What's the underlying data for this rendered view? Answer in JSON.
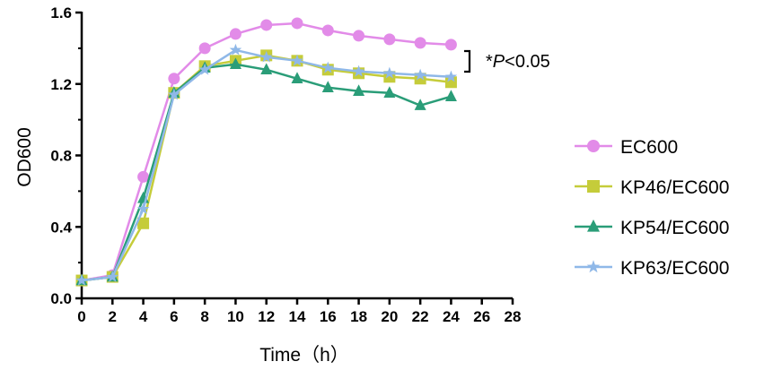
{
  "chart_data": {
    "type": "line",
    "xlabel": "Time（h）",
    "ylabel": "OD600",
    "xlim": [
      0,
      28
    ],
    "ylim": [
      0,
      1.6
    ],
    "xticks": [
      "0",
      "2",
      "4",
      "6",
      "8",
      "10",
      "12",
      "14",
      "16",
      "18",
      "20",
      "22",
      "24",
      "26",
      "28"
    ],
    "yticks": [
      "0.0",
      "0.4",
      "0.8",
      "1.2",
      "1.6"
    ],
    "x": [
      0,
      2,
      4,
      6,
      8,
      10,
      12,
      14,
      16,
      18,
      20,
      22,
      24
    ],
    "series": [
      {
        "name": "EC600",
        "marker": "circle",
        "color": "#e28be8",
        "values": [
          0.1,
          0.13,
          0.68,
          1.23,
          1.4,
          1.48,
          1.53,
          1.54,
          1.5,
          1.47,
          1.45,
          1.43,
          1.42
        ]
      },
      {
        "name": "KP46/EC600",
        "marker": "square",
        "color": "#c5cc3a",
        "values": [
          0.1,
          0.12,
          0.42,
          1.15,
          1.3,
          1.33,
          1.36,
          1.33,
          1.28,
          1.26,
          1.24,
          1.23,
          1.21
        ]
      },
      {
        "name": "KP54/EC600",
        "marker": "triangle",
        "color": "#2a9d78",
        "values": [
          0.1,
          0.12,
          0.56,
          1.15,
          1.29,
          1.31,
          1.28,
          1.23,
          1.18,
          1.16,
          1.15,
          1.08,
          1.13
        ]
      },
      {
        "name": "KP63/EC600",
        "marker": "star",
        "color": "#8fb8e8",
        "values": [
          0.1,
          0.12,
          0.5,
          1.14,
          1.28,
          1.39,
          1.35,
          1.33,
          1.29,
          1.27,
          1.26,
          1.25,
          1.24
        ]
      }
    ],
    "annotation": {
      "prefix": "*",
      "italic": "P",
      "suffix": "<0.05"
    },
    "legend": "right"
  }
}
